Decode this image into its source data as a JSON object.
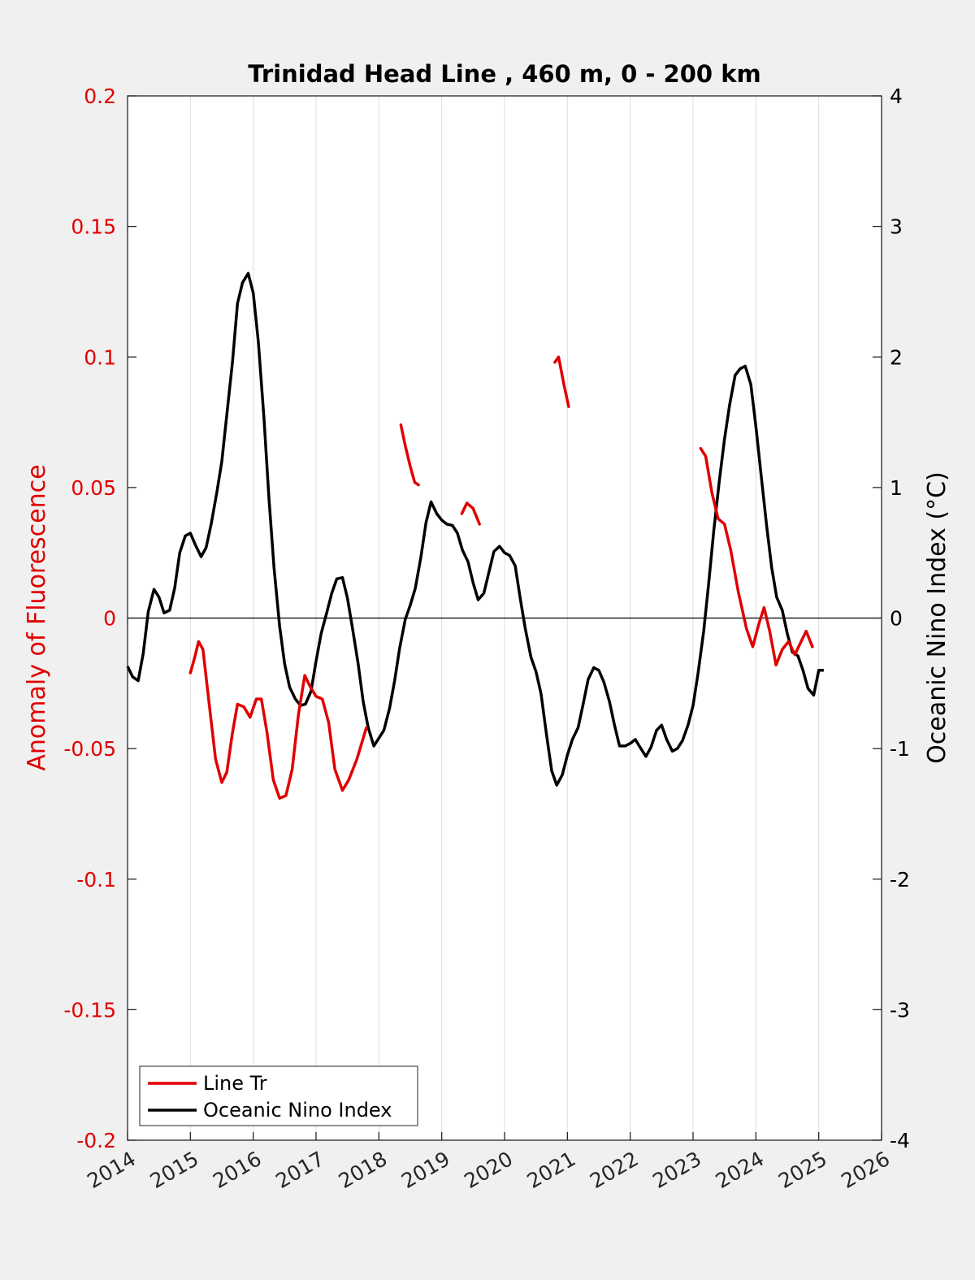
{
  "chart_data": {
    "type": "line",
    "title": "Trinidad Head Line , 460 m, 0 - 200 km",
    "ylabel_left": "Anomaly of Fluorescence",
    "ylabel_right": "Oceanic Nino Index (°C)",
    "xlabel": "",
    "xlim": [
      2014,
      2026
    ],
    "ylim_left": [
      -0.2,
      0.2
    ],
    "ylim_right": [
      -4,
      4
    ],
    "x_ticks": [
      "2014",
      "2015",
      "2016",
      "2017",
      "2018",
      "2019",
      "2020",
      "2021",
      "2022",
      "2023",
      "2024",
      "2025",
      "2026"
    ],
    "y_ticks_left": [
      "0.2",
      "0.15",
      "0.1",
      "0.05",
      "0",
      "-0.05",
      "-0.1",
      "-0.15",
      "-0.2"
    ],
    "y_ticks_right": [
      "4",
      "3",
      "2",
      "1",
      "0",
      "-1",
      "-2",
      "-3",
      "-4"
    ],
    "grid": "vertical",
    "legend_position": "bottom-left",
    "colors": {
      "line_tr": "#e00000",
      "oni": "#000000",
      "left_axis": "#e00000",
      "right_axis": "#000000"
    },
    "series": [
      {
        "name": "Line Tr",
        "axis": "left",
        "color": "#e00000",
        "segments": [
          [
            [
              2015.0,
              -0.021
            ],
            [
              2015.07,
              -0.015
            ],
            [
              2015.13,
              -0.009
            ],
            [
              2015.2,
              -0.012
            ],
            [
              2015.3,
              -0.033
            ],
            [
              2015.4,
              -0.054
            ],
            [
              2015.5,
              -0.063
            ],
            [
              2015.58,
              -0.059
            ],
            [
              2015.67,
              -0.044
            ],
            [
              2015.75,
              -0.033
            ],
            [
              2015.85,
              -0.034
            ],
            [
              2015.95,
              -0.038
            ],
            [
              2016.05,
              -0.031
            ],
            [
              2016.13,
              -0.031
            ],
            [
              2016.22,
              -0.044
            ],
            [
              2016.32,
              -0.062
            ],
            [
              2016.42,
              -0.069
            ],
            [
              2016.52,
              -0.068
            ],
            [
              2016.62,
              -0.058
            ],
            [
              2016.72,
              -0.037
            ],
            [
              2016.82,
              -0.022
            ],
            [
              2016.9,
              -0.026
            ],
            [
              2017.0,
              -0.03
            ],
            [
              2017.1,
              -0.031
            ],
            [
              2017.2,
              -0.04
            ],
            [
              2017.3,
              -0.058
            ],
            [
              2017.42,
              -0.066
            ],
            [
              2017.52,
              -0.062
            ],
            [
              2017.65,
              -0.054
            ],
            [
              2017.8,
              -0.042
            ]
          ],
          [
            [
              2018.35,
              0.074
            ],
            [
              2018.42,
              0.066
            ],
            [
              2018.5,
              0.058
            ],
            [
              2018.57,
              0.052
            ],
            [
              2018.63,
              0.051
            ]
          ],
          [
            [
              2019.32,
              0.04
            ],
            [
              2019.4,
              0.044
            ],
            [
              2019.5,
              0.042
            ],
            [
              2019.6,
              0.036
            ]
          ],
          [
            [
              2020.8,
              0.098
            ],
            [
              2020.86,
              0.1
            ],
            [
              2020.94,
              0.09
            ],
            [
              2021.02,
              0.081
            ]
          ],
          [
            [
              2023.12,
              0.065
            ],
            [
              2023.2,
              0.062
            ],
            [
              2023.3,
              0.048
            ],
            [
              2023.4,
              0.038
            ],
            [
              2023.5,
              0.036
            ],
            [
              2023.6,
              0.026
            ],
            [
              2023.72,
              0.01
            ],
            [
              2023.85,
              -0.004
            ],
            [
              2023.95,
              -0.011
            ],
            [
              2024.05,
              -0.002
            ],
            [
              2024.13,
              0.004
            ],
            [
              2024.22,
              -0.005
            ],
            [
              2024.32,
              -0.018
            ],
            [
              2024.42,
              -0.012
            ],
            [
              2024.52,
              -0.009
            ],
            [
              2024.62,
              -0.014
            ],
            [
              2024.72,
              -0.009
            ],
            [
              2024.8,
              -0.005
            ],
            [
              2024.9,
              -0.011
            ]
          ]
        ]
      },
      {
        "name": "Oceanic Nino Index",
        "axis": "right",
        "color": "#000000",
        "x": [
          2014.0,
          2014.08,
          2014.17,
          2014.25,
          2014.33,
          2014.42,
          2014.5,
          2014.58,
          2014.67,
          2014.75,
          2014.83,
          2014.92,
          2015.0,
          2015.08,
          2015.17,
          2015.25,
          2015.33,
          2015.42,
          2015.5,
          2015.58,
          2015.67,
          2015.75,
          2015.83,
          2015.92,
          2016.0,
          2016.08,
          2016.17,
          2016.25,
          2016.33,
          2016.42,
          2016.5,
          2016.58,
          2016.67,
          2016.75,
          2016.83,
          2016.92,
          2017.0,
          2017.08,
          2017.17,
          2017.25,
          2017.33,
          2017.42,
          2017.5,
          2017.58,
          2017.67,
          2017.75,
          2017.83,
          2017.92,
          2018.0,
          2018.08,
          2018.17,
          2018.25,
          2018.33,
          2018.42,
          2018.5,
          2018.58,
          2018.67,
          2018.75,
          2018.83,
          2018.92,
          2019.0,
          2019.08,
          2019.17,
          2019.25,
          2019.33,
          2019.42,
          2019.5,
          2019.58,
          2019.67,
          2019.75,
          2019.83,
          2019.92,
          2020.0,
          2020.08,
          2020.17,
          2020.25,
          2020.33,
          2020.42,
          2020.5,
          2020.58,
          2020.67,
          2020.75,
          2020.83,
          2020.92,
          2021.0,
          2021.08,
          2021.17,
          2021.25,
          2021.33,
          2021.42,
          2021.5,
          2021.58,
          2021.67,
          2021.75,
          2021.83,
          2021.92,
          2022.0,
          2022.08,
          2022.17,
          2022.25,
          2022.33,
          2022.42,
          2022.5,
          2022.58,
          2022.67,
          2022.75,
          2022.83,
          2022.92,
          2023.0,
          2023.08,
          2023.17,
          2023.25,
          2023.33,
          2023.42,
          2023.5,
          2023.58,
          2023.67,
          2023.75,
          2023.83,
          2023.92,
          2024.0,
          2024.08,
          2024.17,
          2024.25,
          2024.33,
          2024.42,
          2024.5,
          2024.58,
          2024.67,
          2024.75,
          2024.83,
          2024.92,
          2025.0,
          2025.08
        ],
        "values": [
          -0.37,
          -0.45,
          -0.48,
          -0.27,
          0.05,
          0.22,
          0.16,
          0.04,
          0.06,
          0.23,
          0.5,
          0.63,
          0.65,
          0.56,
          0.47,
          0.54,
          0.72,
          0.96,
          1.2,
          1.56,
          1.96,
          2.41,
          2.57,
          2.64,
          2.49,
          2.12,
          1.54,
          0.92,
          0.39,
          -0.06,
          -0.35,
          -0.53,
          -0.62,
          -0.67,
          -0.66,
          -0.56,
          -0.33,
          -0.12,
          0.04,
          0.19,
          0.3,
          0.31,
          0.15,
          -0.08,
          -0.35,
          -0.64,
          -0.84,
          -0.98,
          -0.92,
          -0.86,
          -0.69,
          -0.48,
          -0.23,
          -0.01,
          0.1,
          0.23,
          0.47,
          0.73,
          0.89,
          0.8,
          0.75,
          0.72,
          0.71,
          0.65,
          0.52,
          0.43,
          0.27,
          0.14,
          0.19,
          0.35,
          0.51,
          0.55,
          0.5,
          0.48,
          0.4,
          0.15,
          -0.08,
          -0.3,
          -0.41,
          -0.58,
          -0.9,
          -1.17,
          -1.28,
          -1.2,
          -1.05,
          -0.93,
          -0.84,
          -0.66,
          -0.47,
          -0.38,
          -0.4,
          -0.49,
          -0.64,
          -0.82,
          -0.98,
          -0.98,
          -0.96,
          -0.93,
          -1.0,
          -1.06,
          -0.99,
          -0.86,
          -0.82,
          -0.93,
          -1.02,
          -1.0,
          -0.94,
          -0.82,
          -0.67,
          -0.42,
          -0.1,
          0.27,
          0.67,
          1.06,
          1.37,
          1.63,
          1.86,
          1.91,
          1.93,
          1.79,
          1.47,
          1.11,
          0.71,
          0.39,
          0.16,
          0.06,
          -0.12,
          -0.26,
          -0.29,
          -0.4,
          -0.54,
          -0.59,
          -0.4,
          -0.4
        ]
      }
    ]
  }
}
